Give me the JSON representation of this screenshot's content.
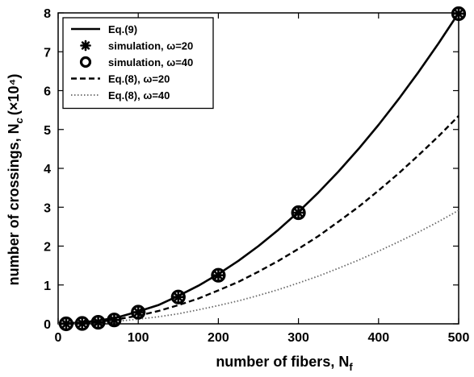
{
  "chart_data": {
    "type": "line",
    "xlabel": "number of fibers, N",
    "xlabel_sub": "f",
    "ylabel": "number of crossings, N",
    "ylabel_sub": "c",
    "ylabel_unit": "(×10⁴)",
    "xlim": [
      0,
      500
    ],
    "ylim": [
      0,
      8
    ],
    "xticks": [
      0,
      100,
      200,
      300,
      400,
      500
    ],
    "yticks": [
      0,
      1,
      2,
      3,
      4,
      5,
      6,
      7,
      8
    ],
    "grid": false,
    "legend_position": "top-left",
    "series": [
      {
        "name": "Eq.(9)",
        "kind": "solid-line",
        "x": [
          0,
          25,
          50,
          75,
          100,
          125,
          150,
          175,
          200,
          225,
          250,
          275,
          300,
          325,
          350,
          375,
          400,
          425,
          450,
          475,
          500
        ],
        "y": [
          0,
          0.03,
          0.08,
          0.17,
          0.32,
          0.48,
          0.72,
          0.98,
          1.28,
          1.62,
          2.0,
          2.42,
          2.88,
          3.38,
          3.92,
          4.5,
          5.12,
          5.78,
          6.48,
          7.22,
          8.0
        ]
      },
      {
        "name": "simulation, ω=20",
        "kind": "asterisk",
        "x": [
          10,
          30,
          50,
          70,
          100,
          150,
          200,
          300,
          500
        ],
        "y": [
          0.0,
          0.01,
          0.04,
          0.1,
          0.3,
          0.69,
          1.25,
          2.86,
          7.98
        ]
      },
      {
        "name": "simulation, ω=40",
        "kind": "circle",
        "x": [
          10,
          30,
          50,
          70,
          100,
          150,
          200,
          300,
          500
        ],
        "y": [
          0.0,
          0.01,
          0.04,
          0.1,
          0.3,
          0.69,
          1.25,
          2.86,
          7.98
        ]
      },
      {
        "name": "Eq.(8), ω=20",
        "kind": "dashed-line",
        "x": [
          0,
          25,
          50,
          75,
          100,
          125,
          150,
          175,
          200,
          225,
          250,
          275,
          300,
          325,
          350,
          375,
          400,
          425,
          450,
          475,
          500
        ],
        "y": [
          0,
          0.02,
          0.05,
          0.12,
          0.21,
          0.33,
          0.48,
          0.65,
          0.86,
          1.08,
          1.34,
          1.62,
          1.93,
          2.26,
          2.63,
          3.01,
          3.43,
          3.87,
          4.34,
          4.83,
          5.35
        ]
      },
      {
        "name": "Eq.(8), ω=40",
        "kind": "dotted-line",
        "x": [
          0,
          25,
          50,
          75,
          100,
          125,
          150,
          175,
          200,
          225,
          250,
          275,
          300,
          325,
          350,
          375,
          400,
          425,
          450,
          475,
          500
        ],
        "y": [
          0,
          0.01,
          0.03,
          0.07,
          0.12,
          0.18,
          0.26,
          0.36,
          0.47,
          0.59,
          0.73,
          0.88,
          1.05,
          1.23,
          1.43,
          1.64,
          1.87,
          2.11,
          2.36,
          2.63,
          2.92
        ]
      }
    ]
  }
}
